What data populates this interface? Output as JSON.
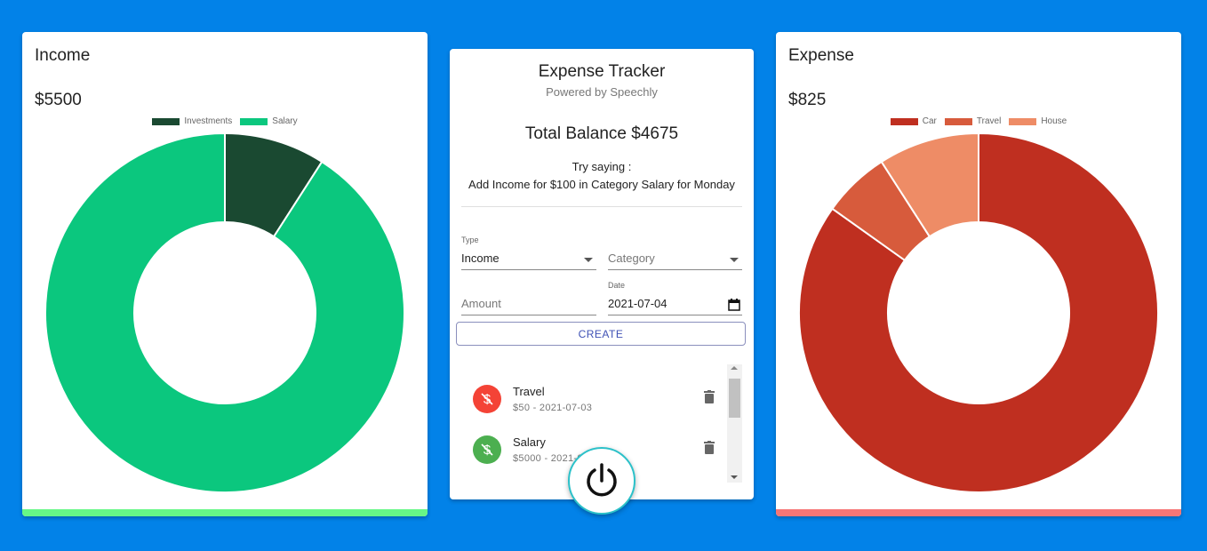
{
  "income": {
    "title": "Income",
    "amount": "$5500",
    "legend": [
      "Investments",
      "Salary"
    ],
    "colors": {
      "Investments": "#1a4931",
      "Salary": "#0bc77e",
      "bar": "#67f787"
    }
  },
  "expense": {
    "title": "Expense",
    "amount": "$825",
    "legend": [
      "Car",
      "Travel",
      "House"
    ],
    "colors": {
      "Car": "#bf2f20",
      "Travel": "#d75b3c",
      "House": "#ee8c66",
      "bar": "#f67676"
    }
  },
  "chart_data": [
    {
      "type": "pie",
      "title": "",
      "categories": [
        "Investments",
        "Salary"
      ],
      "values": [
        500,
        5000
      ],
      "donut": true,
      "legend": "top"
    },
    {
      "type": "pie",
      "title": "",
      "categories": [
        "Car",
        "Travel",
        "House"
      ],
      "values": [
        700,
        50,
        75
      ],
      "donut": true,
      "legend": "top"
    }
  ],
  "tracker": {
    "title": "Expense Tracker",
    "subtitle": "Powered by Speechly",
    "balance": "Total Balance $4675",
    "try_saying": "Try saying :",
    "example": "Add Income for $100 in Category Salary for Monday",
    "form": {
      "type_label": "Type",
      "type_value": "Income",
      "category_placeholder": "Category",
      "amount_placeholder": "Amount",
      "date_label": "Date",
      "date_value": "2021-07-04",
      "create_label": "CREATE"
    },
    "transactions": [
      {
        "name": "Travel",
        "detail": "$50 - 2021-07-03",
        "kind": "expense",
        "color": "#f44336"
      },
      {
        "name": "Salary",
        "detail": "$5000 - 2021-07-",
        "kind": "income",
        "color": "#4caf50"
      }
    ]
  }
}
